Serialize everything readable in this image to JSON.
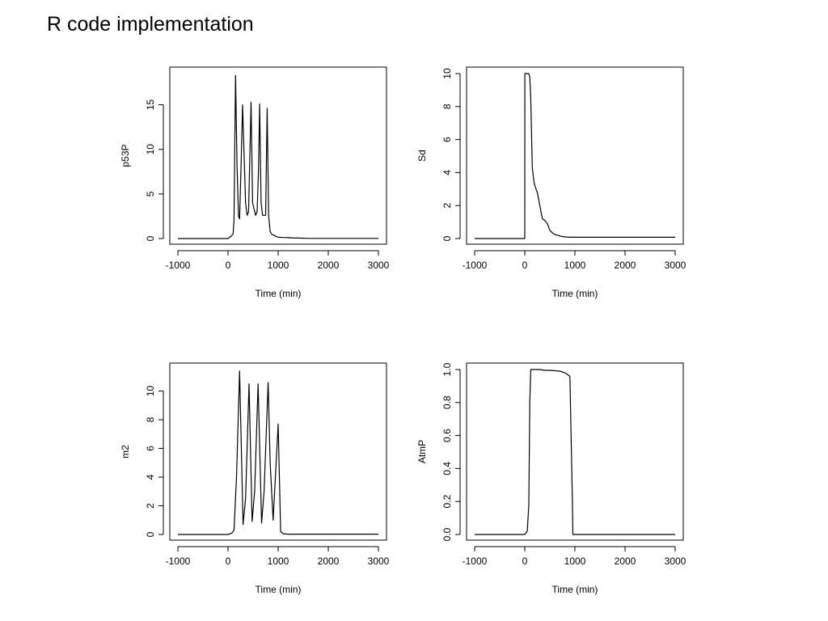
{
  "slide": {
    "title": "R code implementation"
  },
  "chart_data": [
    {
      "type": "line",
      "ylabel": "p53P",
      "xlabel": "Time (min)",
      "xlim": [
        -1000,
        3000
      ],
      "ylim": [
        0,
        18.5
      ],
      "xticks": [
        -1000,
        0,
        1000,
        2000,
        3000
      ],
      "yticks": [
        0,
        5,
        10,
        15
      ],
      "ytick_labels": [
        "0",
        "5",
        "10",
        "15"
      ],
      "series": [
        {
          "x": [
            -1000,
            0,
            50,
            100,
            120,
            150,
            180,
            210,
            230,
            260,
            290,
            350,
            380,
            410,
            430,
            460,
            490,
            550,
            580,
            610,
            630,
            660,
            690,
            750,
            780,
            810,
            840,
            870,
            900,
            940,
            970,
            1000,
            1100,
            1200,
            1300,
            1400,
            1600,
            1700,
            2000,
            3000
          ],
          "y": [
            0,
            0,
            0.2,
            0.5,
            2,
            18.3,
            8,
            2.5,
            2.2,
            8,
            15,
            4,
            2.6,
            3,
            8,
            15.3,
            4,
            2.6,
            3,
            8,
            15.1,
            4,
            2.6,
            2.6,
            14.6,
            2.6,
            0.8,
            0.5,
            0.4,
            0.3,
            0.2,
            0.15,
            0.12,
            0.1,
            0.05,
            0.05,
            0.02,
            0.02,
            0.02,
            0.02
          ]
        }
      ]
    },
    {
      "type": "line",
      "ylabel": "Sd",
      "xlabel": "Time (min)",
      "xlim": [
        -1000,
        3000
      ],
      "ylim": [
        0,
        10
      ],
      "xticks": [
        -1000,
        0,
        1000,
        2000,
        3000
      ],
      "yticks": [
        0,
        2,
        4,
        6,
        8,
        10
      ],
      "ytick_labels": [
        "0",
        "2",
        "4",
        "6",
        "8",
        "10"
      ],
      "series": [
        {
          "x": [
            -1000,
            0,
            1,
            80,
            100,
            120,
            150,
            180,
            200,
            250,
            300,
            350,
            400,
            450,
            500,
            550,
            600,
            700,
            800,
            900,
            1000,
            3000
          ],
          "y": [
            0,
            0,
            10,
            10,
            9.8,
            8.5,
            4.3,
            3.5,
            3.2,
            2.8,
            2.0,
            1.2,
            1.1,
            0.9,
            0.5,
            0.35,
            0.25,
            0.15,
            0.1,
            0.08,
            0.08,
            0.08
          ]
        }
      ]
    },
    {
      "type": "line",
      "ylabel": "m2",
      "xlabel": "Time (min)",
      "xlim": [
        -1000,
        3000
      ],
      "ylim": [
        0,
        11.5
      ],
      "xticks": [
        -1000,
        0,
        1000,
        2000,
        3000
      ],
      "yticks": [
        0,
        2,
        4,
        6,
        8,
        10
      ],
      "ytick_labels": [
        "0",
        "2",
        "4",
        "6",
        "8",
        "10"
      ],
      "series": [
        {
          "x": [
            -1000,
            0,
            80,
            120,
            170,
            230,
            300,
            350,
            420,
            480,
            530,
            600,
            670,
            720,
            800,
            840,
            900,
            1000,
            1050,
            1100,
            1200,
            1300,
            1600,
            2000,
            3000
          ],
          "y": [
            0,
            0,
            0.1,
            0.3,
            4,
            11.4,
            0.7,
            2.5,
            10.5,
            0.9,
            3,
            10.5,
            0.8,
            3,
            10.6,
            5,
            1.0,
            7.7,
            0.2,
            0.05,
            0.02,
            0.02,
            0.02,
            0.02,
            0.02
          ]
        }
      ]
    },
    {
      "type": "line",
      "ylabel": "AtmP",
      "xlabel": "Time (min)",
      "xlim": [
        -1000,
        3000
      ],
      "ylim": [
        0,
        1.0
      ],
      "xticks": [
        -1000,
        0,
        1000,
        2000,
        3000
      ],
      "yticks": [
        0,
        0.2,
        0.4,
        0.6,
        0.8,
        1.0
      ],
      "ytick_labels": [
        "0.0",
        "0.2",
        "0.4",
        "0.6",
        "0.8",
        "1.0"
      ],
      "series": [
        {
          "x": [
            -1000,
            0,
            50,
            80,
            100,
            120,
            300,
            400,
            500,
            700,
            800,
            850,
            900,
            950,
            960,
            1000,
            3000
          ],
          "y": [
            0,
            0,
            0.02,
            0.18,
            0.8,
            1.0,
            1.0,
            0.995,
            0.995,
            0.99,
            0.98,
            0.97,
            0.96,
            0.2,
            0.0,
            0.0,
            0.0
          ]
        }
      ]
    }
  ]
}
